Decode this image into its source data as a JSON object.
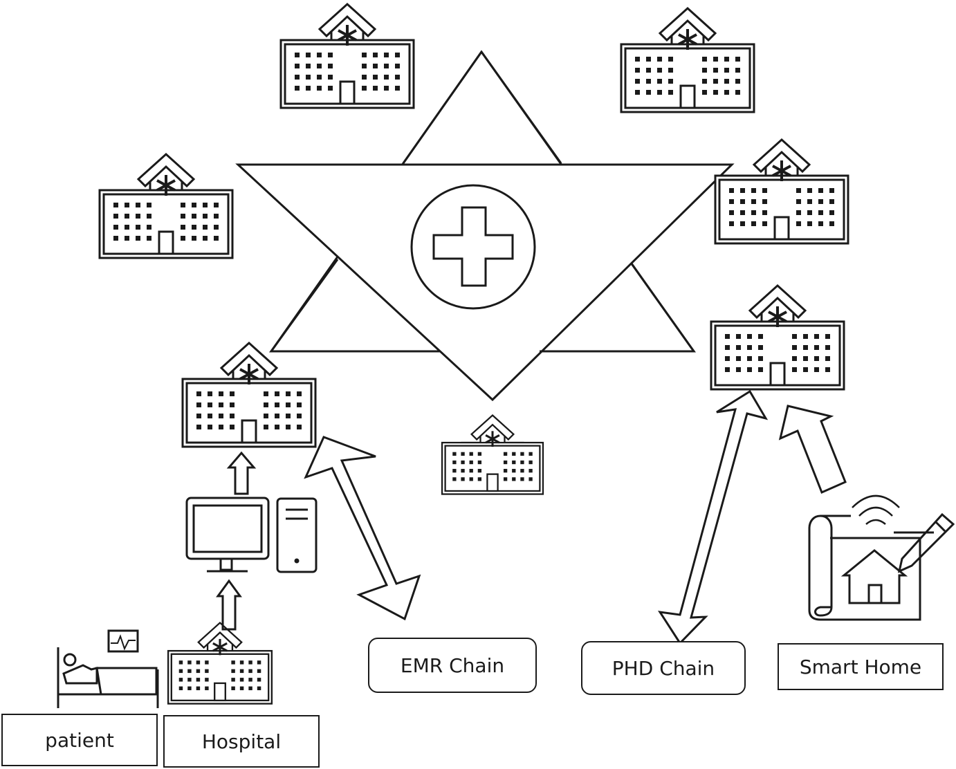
{
  "labels": {
    "patient": "patient",
    "hospital": "Hospital",
    "emr_chain": "EMR Chain",
    "phd_chain": "PHD Chain",
    "smart_home": "Smart Home"
  },
  "colors": {
    "stroke": "#1a1a1a",
    "background": "#ffffff"
  },
  "icons": [
    "hospital-icon",
    "medical-cross-icon",
    "computer-monitor-icon",
    "computer-tower-icon",
    "patient-bed-icon",
    "heart-monitor-icon",
    "smart-home-blueprint-icon",
    "pencil-icon",
    "wifi-signal-icon"
  ]
}
